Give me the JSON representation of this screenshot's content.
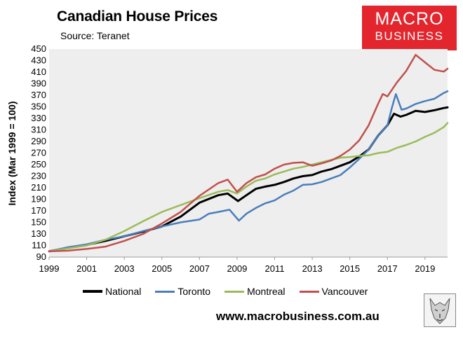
{
  "title": "Canadian House Prices",
  "subtitle": "Source: Teranet",
  "logo": {
    "line1": "MACRO",
    "line2": "BUSINESS",
    "bg": "#e3262d"
  },
  "website": "www.macrobusiness.com.au",
  "wolf_icon": "wolf-emblem-icon",
  "chart_data": {
    "type": "line",
    "title": "Canadian House Prices",
    "ylabel": "Index (Mar 1999 = 100)",
    "xlabel": "",
    "xlim": [
      1999,
      2020.2
    ],
    "ylim": [
      90,
      450
    ],
    "x_ticks": [
      "1999",
      "2001",
      "2003",
      "2005",
      "2007",
      "2009",
      "2011",
      "2013",
      "2015",
      "2017",
      "2019"
    ],
    "y_ticks": [
      "90",
      "110",
      "130",
      "150",
      "170",
      "190",
      "210",
      "230",
      "250",
      "270",
      "290",
      "310",
      "330",
      "350",
      "370",
      "390",
      "410",
      "430",
      "450"
    ],
    "grid": false,
    "legend_position": "bottom",
    "series": [
      {
        "name": "National",
        "color": "#000000",
        "width": 3,
        "points": [
          [
            1999,
            100
          ],
          [
            2000,
            106
          ],
          [
            2001,
            111
          ],
          [
            2002,
            118
          ],
          [
            2003,
            126
          ],
          [
            2004,
            134
          ],
          [
            2005,
            143
          ],
          [
            2006,
            160
          ],
          [
            2007,
            184
          ],
          [
            2008,
            197
          ],
          [
            2008.5,
            200
          ],
          [
            2009.05,
            187
          ],
          [
            2009.5,
            197
          ],
          [
            2010,
            208
          ],
          [
            2010.5,
            212
          ],
          [
            2011,
            215
          ],
          [
            2011.5,
            220
          ],
          [
            2012,
            226
          ],
          [
            2012.5,
            230
          ],
          [
            2013,
            232
          ],
          [
            2013.5,
            238
          ],
          [
            2014,
            242
          ],
          [
            2014.5,
            248
          ],
          [
            2015,
            254
          ],
          [
            2015.5,
            264
          ],
          [
            2016,
            276
          ],
          [
            2016.5,
            300
          ],
          [
            2017,
            318
          ],
          [
            2017.35,
            338
          ],
          [
            2017.7,
            333
          ],
          [
            2018,
            336
          ],
          [
            2018.5,
            343
          ],
          [
            2019,
            341
          ],
          [
            2019.5,
            344
          ],
          [
            2020,
            348
          ],
          [
            2020.2,
            349
          ]
        ]
      },
      {
        "name": "Toronto",
        "color": "#4a7ebb",
        "width": 2.5,
        "points": [
          [
            1999,
            100
          ],
          [
            2000,
            107
          ],
          [
            2001,
            112
          ],
          [
            2002,
            120
          ],
          [
            2003,
            126
          ],
          [
            2004,
            135
          ],
          [
            2005,
            143
          ],
          [
            2006,
            150
          ],
          [
            2007,
            155
          ],
          [
            2007.5,
            165
          ],
          [
            2008,
            168
          ],
          [
            2008.6,
            172
          ],
          [
            2009.1,
            153
          ],
          [
            2009.5,
            165
          ],
          [
            2010,
            175
          ],
          [
            2010.5,
            183
          ],
          [
            2011,
            188
          ],
          [
            2011.5,
            198
          ],
          [
            2012,
            205
          ],
          [
            2012.5,
            215
          ],
          [
            2013,
            216
          ],
          [
            2013.5,
            220
          ],
          [
            2014,
            226
          ],
          [
            2014.5,
            232
          ],
          [
            2015,
            245
          ],
          [
            2015.5,
            260
          ],
          [
            2016,
            276
          ],
          [
            2016.5,
            300
          ],
          [
            2017,
            318
          ],
          [
            2017.25,
            350
          ],
          [
            2017.45,
            372
          ],
          [
            2017.75,
            345
          ],
          [
            2018,
            347
          ],
          [
            2018.5,
            355
          ],
          [
            2019,
            360
          ],
          [
            2019.5,
            364
          ],
          [
            2020,
            374
          ],
          [
            2020.2,
            377
          ]
        ]
      },
      {
        "name": "Montreal",
        "color": "#9bbb59",
        "width": 2.5,
        "points": [
          [
            1999,
            100
          ],
          [
            2000,
            105
          ],
          [
            2001,
            110
          ],
          [
            2002,
            120
          ],
          [
            2003,
            135
          ],
          [
            2004,
            152
          ],
          [
            2005,
            168
          ],
          [
            2006,
            180
          ],
          [
            2007,
            192
          ],
          [
            2008,
            203
          ],
          [
            2008.5,
            206
          ],
          [
            2009,
            200
          ],
          [
            2009.5,
            212
          ],
          [
            2010,
            222
          ],
          [
            2010.5,
            226
          ],
          [
            2011,
            233
          ],
          [
            2011.5,
            238
          ],
          [
            2012,
            243
          ],
          [
            2012.5,
            246
          ],
          [
            2013,
            250
          ],
          [
            2013.5,
            254
          ],
          [
            2014,
            258
          ],
          [
            2014.5,
            262
          ],
          [
            2015,
            263
          ],
          [
            2015.5,
            265
          ],
          [
            2016,
            266
          ],
          [
            2016.5,
            270
          ],
          [
            2017,
            272
          ],
          [
            2017.5,
            279
          ],
          [
            2018,
            284
          ],
          [
            2018.5,
            290
          ],
          [
            2019,
            298
          ],
          [
            2019.5,
            305
          ],
          [
            2020,
            315
          ],
          [
            2020.2,
            322
          ]
        ]
      },
      {
        "name": "Vancouver",
        "color": "#c0504d",
        "width": 2.5,
        "points": [
          [
            1999,
            100
          ],
          [
            2000,
            101
          ],
          [
            2001,
            104
          ],
          [
            2002,
            108
          ],
          [
            2003,
            118
          ],
          [
            2004,
            130
          ],
          [
            2005,
            148
          ],
          [
            2006,
            168
          ],
          [
            2007,
            196
          ],
          [
            2007.5,
            207
          ],
          [
            2008,
            218
          ],
          [
            2008.5,
            224
          ],
          [
            2009,
            203
          ],
          [
            2009.5,
            218
          ],
          [
            2010,
            228
          ],
          [
            2010.5,
            233
          ],
          [
            2011,
            243
          ],
          [
            2011.5,
            250
          ],
          [
            2012,
            253
          ],
          [
            2012.5,
            254
          ],
          [
            2013,
            248
          ],
          [
            2013.5,
            252
          ],
          [
            2014,
            257
          ],
          [
            2014.5,
            265
          ],
          [
            2015,
            276
          ],
          [
            2015.5,
            292
          ],
          [
            2016,
            318
          ],
          [
            2016.5,
            355
          ],
          [
            2016.75,
            372
          ],
          [
            2017,
            368
          ],
          [
            2017.5,
            392
          ],
          [
            2018,
            412
          ],
          [
            2018.5,
            440
          ],
          [
            2019,
            427
          ],
          [
            2019.5,
            414
          ],
          [
            2020,
            411
          ],
          [
            2020.2,
            416
          ]
        ]
      }
    ]
  }
}
